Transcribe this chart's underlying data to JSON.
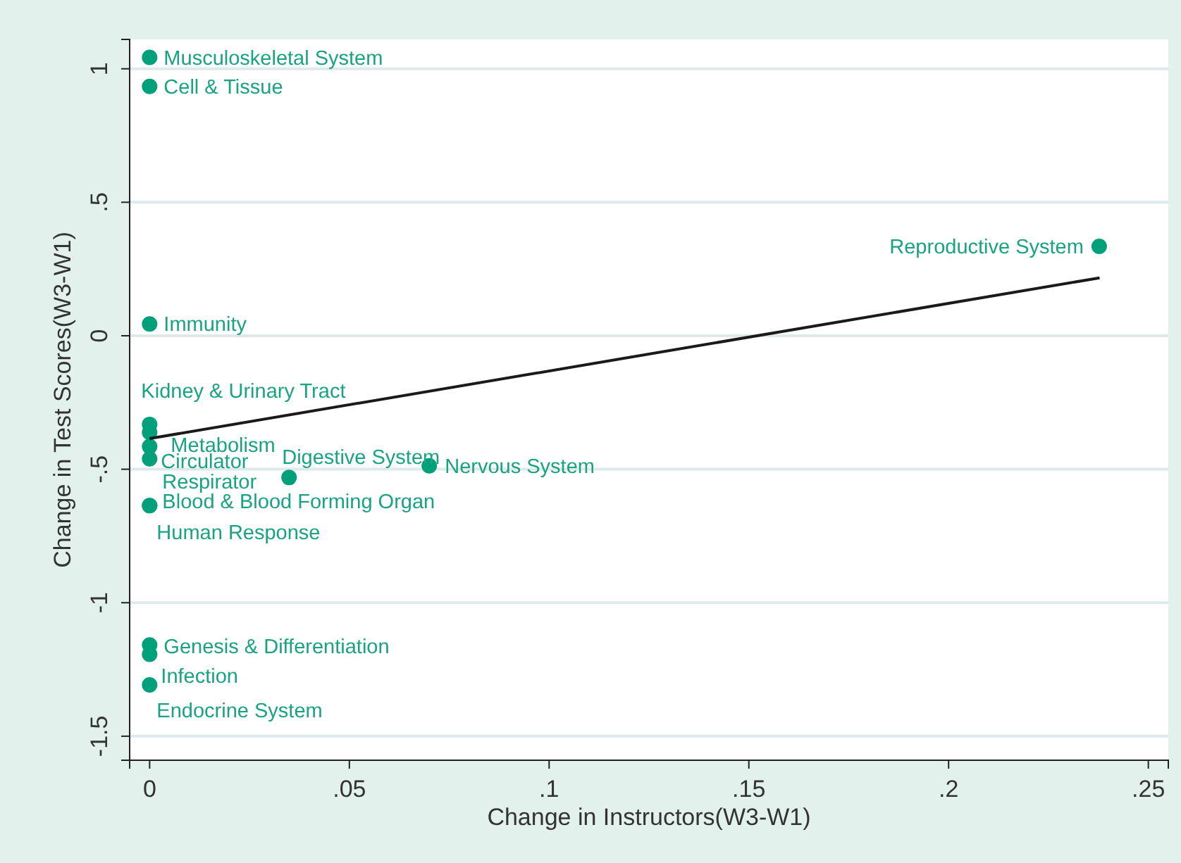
{
  "chart_data": {
    "type": "scatter",
    "xlabel": "Change in Instructors(W3-W1)",
    "ylabel": "Change in Test Scores(W3-W1)",
    "xlim": [
      -0.005,
      0.255
    ],
    "xticks": [
      0,
      {
        "value": 0.05,
        "label": ".05"
      },
      {
        "value": 0.1,
        "label": ".1"
      },
      {
        "value": 0.15,
        "label": ".15"
      },
      {
        "value": 0.2,
        "label": ".2"
      },
      {
        "value": 0.25,
        "label": ".25"
      }
    ],
    "ylim": [
      -1.59,
      1.11
    ],
    "yticks": [
      {
        "value": -1.5,
        "label": "-1.5"
      },
      {
        "value": -1,
        "label": "-1"
      },
      {
        "value": -0.5,
        "label": "-.5"
      },
      0,
      {
        "value": 0.5,
        "label": ".5"
      },
      1
    ],
    "grid": "y",
    "series": [
      {
        "marker": "circle",
        "color": "#00a07a",
        "x": [
          0,
          0,
          0.2377,
          0,
          0,
          0,
          0,
          0,
          0,
          0,
          0.0349,
          0.07,
          0,
          0,
          0
        ],
        "values": [
          1.043,
          0.934,
          0.335,
          0.044,
          -0.332,
          -0.362,
          -0.415,
          -0.461,
          -0.636,
          -0.636,
          -0.531,
          -0.487,
          -1.158,
          -1.193,
          -1.308
        ],
        "value_labels": [
          "Musculoskeletal System",
          "Cell & Tissue",
          "Reproductive System",
          "Immunity",
          "Kidney & Urinary Tract",
          "Metabolism",
          "Circulator",
          "Respirator",
          "Blood & Blood Forming Organ",
          "Human Response",
          "Digestive System",
          "Nervous System",
          "Genesis & Differentiation",
          "Infection",
          "Endocrine System"
        ]
      },
      {
        "type": "line",
        "color": "#1a1a1a",
        "x": [
          0,
          0.2378
        ],
        "values": [
          -0.385,
          0.217
        ]
      }
    ]
  }
}
